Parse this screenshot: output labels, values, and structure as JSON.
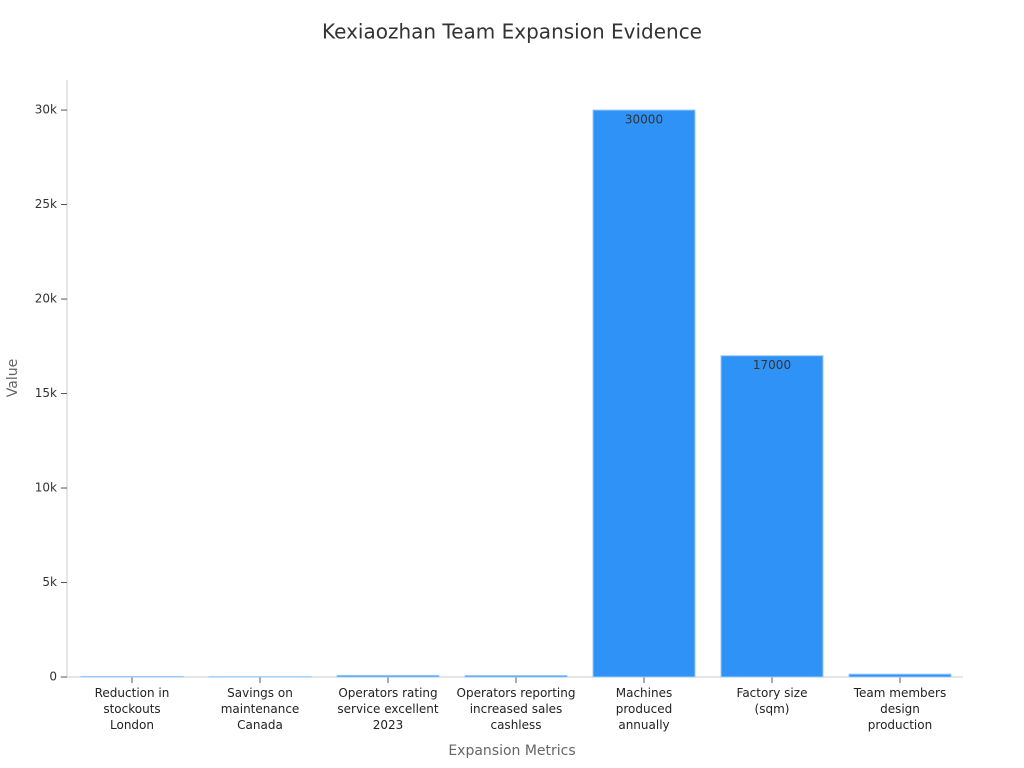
{
  "chart_data": {
    "type": "bar",
    "title": "Kexiaozhan Team Expansion Evidence",
    "x_label": "Expansion Metrics",
    "y_label": "Value",
    "categories": [
      "Reduction in\nstockouts\nLondon",
      "Savings on\nmaintenance\nCanada",
      "Operators rating\nservice excellent\n2023",
      "Operators reporting\nincreased sales\ncashless",
      "Machines\nproduced\nannually",
      "Factory size\n(sqm)",
      "Team members\ndesign\nproduction"
    ],
    "values": [
      30,
      20,
      85,
      79,
      30000,
      17000,
      150
    ],
    "color": "#2f92f7",
    "ylim": [
      0,
      31590
    ],
    "yticks": [
      0,
      {
        "value": 5000,
        "label": "5k"
      },
      {
        "value": 10000,
        "label": "10k"
      },
      {
        "value": 15000,
        "label": "15k"
      },
      {
        "value": 20000,
        "label": "20k"
      },
      {
        "value": 25000,
        "label": "25k"
      },
      {
        "value": 30000,
        "label": "30k"
      }
    ]
  }
}
